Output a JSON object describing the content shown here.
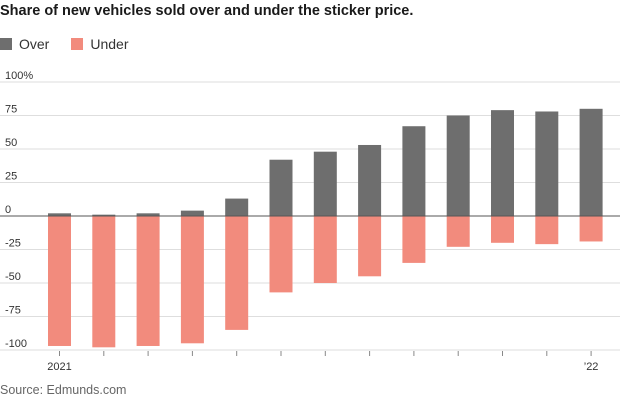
{
  "chart_data": {
    "type": "bar",
    "stacked": true,
    "title": "Share of new vehicles sold over and under the sticker price.",
    "source": "Source: Edmunds.com",
    "y_ticks": [
      {
        "value": 100,
        "label": "100%"
      },
      {
        "value": 75,
        "label": "75"
      },
      {
        "value": 50,
        "label": "50"
      },
      {
        "value": 25,
        "label": "25"
      },
      {
        "value": 0,
        "label": "0"
      },
      {
        "value": -25,
        "label": "-25"
      },
      {
        "value": -50,
        "label": "-50"
      },
      {
        "value": -75,
        "label": "-75"
      },
      {
        "value": -100,
        "label": "-100"
      }
    ],
    "ylim": [
      -100,
      100
    ],
    "x_tick_labels": [
      {
        "index": 0,
        "label": "2021"
      },
      {
        "index": 12,
        "label": "’22"
      }
    ],
    "series": [
      {
        "name": "Over",
        "color": "#6e6e6e",
        "values": [
          2,
          1,
          2,
          4,
          13,
          42,
          48,
          53,
          67,
          75,
          79,
          78,
          80
        ]
      },
      {
        "name": "Under",
        "color": "#f28b7d",
        "values": [
          -97,
          -98,
          -97,
          -95,
          -85,
          -57,
          -50,
          -45,
          -35,
          -23,
          -20,
          -21,
          -19
        ]
      }
    ],
    "n_bars": 13
  }
}
